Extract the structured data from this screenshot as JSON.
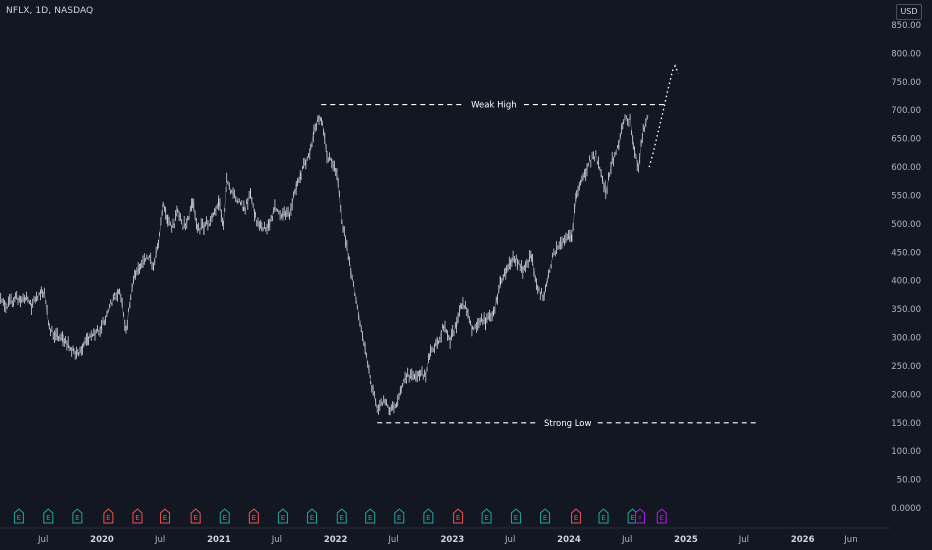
{
  "header": {
    "symbol_line": "NFLX, 1D, NASDAQ"
  },
  "currency_label": "USD",
  "colors": {
    "background": "#131722",
    "candles": "#d1d4dc",
    "earnings_positive": "#26a69a",
    "earnings_negative": "#ef5350",
    "earnings_upcoming": "#b31ee6",
    "grid_text": "#b2b5be"
  },
  "chart_data": {
    "type": "line",
    "title": "NFLX, 1D, NASDAQ",
    "ylim": [
      0,
      850
    ],
    "y_ticks": [
      "0.0000",
      "50.00",
      "100.00",
      "150.00",
      "200.00",
      "250.00",
      "300.00",
      "350.00",
      "400.00",
      "450.00",
      "500.00",
      "550.00",
      "600.00",
      "650.00",
      "700.00",
      "750.00",
      "800.00",
      "850.00"
    ],
    "x_ticks": [
      {
        "label": "Jul",
        "date": "2019-07-01",
        "year": false
      },
      {
        "label": "2020",
        "date": "2020-01-01",
        "year": true
      },
      {
        "label": "Jul",
        "date": "2020-07-01",
        "year": false
      },
      {
        "label": "2021",
        "date": "2021-01-01",
        "year": true
      },
      {
        "label": "Jul",
        "date": "2021-07-01",
        "year": false
      },
      {
        "label": "2022",
        "date": "2022-01-01",
        "year": true
      },
      {
        "label": "Jul",
        "date": "2022-07-01",
        "year": false
      },
      {
        "label": "2023",
        "date": "2023-01-01",
        "year": true
      },
      {
        "label": "Jul",
        "date": "2023-07-01",
        "year": false
      },
      {
        "label": "2024",
        "date": "2024-01-01",
        "year": true
      },
      {
        "label": "Jul",
        "date": "2024-07-01",
        "year": false
      },
      {
        "label": "2025",
        "date": "2025-01-01",
        "year": true
      },
      {
        "label": "Jul",
        "date": "2025-07-01",
        "year": false
      },
      {
        "label": "2026",
        "date": "2026-01-01",
        "year": true
      },
      {
        "label": "Jun",
        "date": "2026-06-01",
        "year": false
      }
    ],
    "series": [
      {
        "style": "daily price bars",
        "points": [
          [
            "2019-01-15",
            355
          ],
          [
            "2019-02-10",
            365
          ],
          [
            "2019-03-10",
            358
          ],
          [
            "2019-04-05",
            370
          ],
          [
            "2019-04-25",
            365
          ],
          [
            "2019-05-10",
            372
          ],
          [
            "2019-05-25",
            355
          ],
          [
            "2019-06-10",
            370
          ],
          [
            "2019-06-25",
            380
          ],
          [
            "2019-07-05",
            378
          ],
          [
            "2019-07-20",
            315
          ],
          [
            "2019-08-10",
            305
          ],
          [
            "2019-09-01",
            295
          ],
          [
            "2019-09-20",
            285
          ],
          [
            "2019-10-05",
            275
          ],
          [
            "2019-10-20",
            268
          ],
          [
            "2019-11-05",
            290
          ],
          [
            "2019-11-20",
            300
          ],
          [
            "2019-12-10",
            305
          ],
          [
            "2019-12-31",
            320
          ],
          [
            "2020-01-20",
            345
          ],
          [
            "2020-02-10",
            375
          ],
          [
            "2020-02-25",
            385
          ],
          [
            "2020-03-16",
            310
          ],
          [
            "2020-03-31",
            375
          ],
          [
            "2020-04-15",
            415
          ],
          [
            "2020-04-30",
            420
          ],
          [
            "2020-05-20",
            440
          ],
          [
            "2020-06-10",
            430
          ],
          [
            "2020-06-25",
            460
          ],
          [
            "2020-07-10",
            540
          ],
          [
            "2020-07-25",
            500
          ],
          [
            "2020-08-10",
            495
          ],
          [
            "2020-08-25",
            525
          ],
          [
            "2020-09-10",
            495
          ],
          [
            "2020-09-25",
            505
          ],
          [
            "2020-10-10",
            540
          ],
          [
            "2020-10-25",
            490
          ],
          [
            "2020-11-15",
            495
          ],
          [
            "2020-12-10",
            510
          ],
          [
            "2020-12-31",
            540
          ],
          [
            "2021-01-15",
            500
          ],
          [
            "2021-01-25",
            575
          ],
          [
            "2021-02-10",
            555
          ],
          [
            "2021-03-01",
            545
          ],
          [
            "2021-03-20",
            525
          ],
          [
            "2021-04-10",
            550
          ],
          [
            "2021-04-25",
            510
          ],
          [
            "2021-05-15",
            490
          ],
          [
            "2021-06-05",
            495
          ],
          [
            "2021-06-25",
            530
          ],
          [
            "2021-07-20",
            515
          ],
          [
            "2021-08-10",
            520
          ],
          [
            "2021-08-31",
            565
          ],
          [
            "2021-09-15",
            590
          ],
          [
            "2021-09-30",
            610
          ],
          [
            "2021-10-15",
            630
          ],
          [
            "2021-10-25",
            665
          ],
          [
            "2021-11-10",
            690
          ],
          [
            "2021-11-20",
            680
          ],
          [
            "2021-12-05",
            620
          ],
          [
            "2021-12-20",
            610
          ],
          [
            "2022-01-05",
            590
          ],
          [
            "2022-01-20",
            510
          ],
          [
            "2022-04-20",
            225
          ],
          [
            "2022-05-11",
            175
          ],
          [
            "2022-06-01",
            190
          ],
          [
            "2022-06-20",
            175
          ],
          [
            "2022-07-10",
            180
          ],
          [
            "2022-07-25",
            210
          ],
          [
            "2022-08-15",
            235
          ],
          [
            "2022-09-05",
            225
          ],
          [
            "2022-09-20",
            235
          ],
          [
            "2022-10-10",
            235
          ],
          [
            "2022-10-25",
            280
          ],
          [
            "2022-11-15",
            290
          ],
          [
            "2022-12-05",
            320
          ],
          [
            "2022-12-25",
            295
          ],
          [
            "2023-01-15",
            325
          ],
          [
            "2023-01-30",
            360
          ],
          [
            "2023-02-15",
            350
          ],
          [
            "2023-03-05",
            315
          ],
          [
            "2023-03-25",
            330
          ],
          [
            "2023-04-15",
            330
          ],
          [
            "2023-05-10",
            345
          ],
          [
            "2023-06-01",
            395
          ],
          [
            "2023-06-20",
            420
          ],
          [
            "2023-07-10",
            440
          ],
          [
            "2023-07-20",
            435
          ],
          [
            "2023-08-10",
            420
          ],
          [
            "2023-09-05",
            445
          ],
          [
            "2023-09-25",
            385
          ],
          [
            "2023-10-15",
            370
          ],
          [
            "2023-10-25",
            405
          ],
          [
            "2023-11-15",
            450
          ],
          [
            "2023-12-10",
            465
          ],
          [
            "2024-01-10",
            480
          ],
          [
            "2024-01-25",
            555
          ],
          [
            "2024-02-10",
            575
          ],
          [
            "2024-03-05",
            610
          ],
          [
            "2024-03-25",
            620
          ],
          [
            "2024-04-15",
            580
          ],
          [
            "2024-04-25",
            555
          ],
          [
            "2024-05-15",
            610
          ],
          [
            "2024-06-05",
            640
          ],
          [
            "2024-06-20",
            680
          ],
          [
            "2024-07-10",
            685
          ],
          [
            "2024-07-20",
            640
          ],
          [
            "2024-08-05",
            600
          ],
          [
            "2024-08-20",
            665
          ],
          [
            "2024-09-05",
            690
          ]
        ]
      },
      {
        "style": "dotted projection",
        "points": [
          [
            "2024-09-08",
            600
          ],
          [
            "2024-09-20",
            625
          ],
          [
            "2024-10-05",
            660
          ],
          [
            "2024-10-20",
            695
          ],
          [
            "2024-11-05",
            735
          ],
          [
            "2024-11-20",
            770
          ],
          [
            "2024-11-28",
            778
          ],
          [
            "2024-12-08",
            765
          ]
        ]
      }
    ],
    "levels": [
      {
        "label": "Weak High",
        "value": 710,
        "from": "2021-11-17",
        "to": "2024-11-01"
      },
      {
        "label": "Strong Low",
        "value": 150,
        "from": "2022-05-11",
        "to": "2025-08-15"
      }
    ],
    "earnings_markers": [
      {
        "date": "2019-01-18",
        "label": "E",
        "kind": "positive"
      },
      {
        "date": "2019-04-16",
        "label": "E",
        "kind": "positive"
      },
      {
        "date": "2019-07-17",
        "label": "E",
        "kind": "positive"
      },
      {
        "date": "2019-10-16",
        "label": "E",
        "kind": "positive"
      },
      {
        "date": "2020-01-21",
        "label": "E",
        "kind": "negative"
      },
      {
        "date": "2020-04-21",
        "label": "E",
        "kind": "negative"
      },
      {
        "date": "2020-07-16",
        "label": "E",
        "kind": "negative"
      },
      {
        "date": "2020-10-20",
        "label": "E",
        "kind": "negative"
      },
      {
        "date": "2021-01-19",
        "label": "E",
        "kind": "positive"
      },
      {
        "date": "2021-04-20",
        "label": "E",
        "kind": "negative"
      },
      {
        "date": "2021-07-20",
        "label": "E",
        "kind": "positive"
      },
      {
        "date": "2021-10-19",
        "label": "E",
        "kind": "positive"
      },
      {
        "date": "2022-01-20",
        "label": "E",
        "kind": "positive"
      },
      {
        "date": "2022-04-19",
        "label": "E",
        "kind": "positive"
      },
      {
        "date": "2022-07-19",
        "label": "E",
        "kind": "positive"
      },
      {
        "date": "2022-10-18",
        "label": "E",
        "kind": "positive"
      },
      {
        "date": "2023-01-19",
        "label": "E",
        "kind": "negative"
      },
      {
        "date": "2023-04-18",
        "label": "E",
        "kind": "positive"
      },
      {
        "date": "2023-07-19",
        "label": "E",
        "kind": "positive"
      },
      {
        "date": "2023-10-18",
        "label": "E",
        "kind": "positive"
      },
      {
        "date": "2024-01-23",
        "label": "E",
        "kind": "negative"
      },
      {
        "date": "2024-04-18",
        "label": "E",
        "kind": "positive"
      },
      {
        "date": "2024-07-18",
        "label": "E",
        "kind": "positive"
      },
      {
        "date": "2024-08-10",
        "label": "⚡",
        "kind": "upcoming"
      },
      {
        "date": "2024-10-17",
        "label": "E",
        "kind": "upcoming"
      }
    ]
  }
}
